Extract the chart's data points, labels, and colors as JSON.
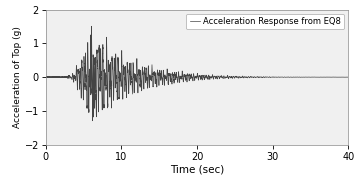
{
  "title": "",
  "xlabel": "Time (sec)",
  "ylabel": "Acceleration of Top (g)",
  "legend_label": "Acceleration Response from EQ8",
  "xlim": [
    0,
    40
  ],
  "ylim": [
    -2,
    2
  ],
  "xticks": [
    0,
    10,
    20,
    30,
    40
  ],
  "yticks": [
    -2,
    -1,
    0,
    1,
    2
  ],
  "line_color": "#444444",
  "line_width": 0.5,
  "background_color": "#ffffff",
  "axes_bg_color": "#f0f0f0",
  "dt": 0.005,
  "total_time": 40.0,
  "eq_start": 3.2,
  "peak_time": 6.0,
  "peak_amp": 1.28,
  "decay_rate": 0.18,
  "freq_main": 4.0,
  "freq_secondary": 2.5,
  "freq_high": 6.0,
  "freq_low": 1.0
}
